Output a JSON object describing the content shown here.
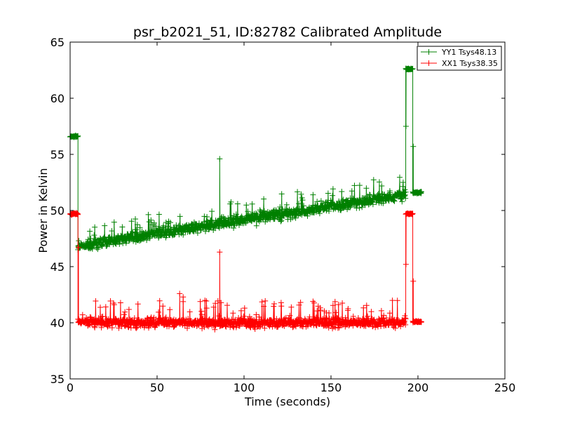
{
  "chart_data": {
    "type": "line",
    "title": "psr_b2021_51, ID:82782 Calibrated Amplitude",
    "xlabel": "Time (seconds)",
    "ylabel": "Power in Kelvin",
    "xlim": [
      0,
      250
    ],
    "ylim": [
      35,
      65
    ],
    "x_ticks": [
      0,
      50,
      100,
      150,
      200,
      250
    ],
    "y_ticks": [
      35,
      40,
      45,
      50,
      55,
      60,
      65
    ],
    "grid": false,
    "legend_position": "top-right",
    "marker": "+",
    "series": [
      {
        "name": "YY1 Tsys48.13",
        "color": "#008000",
        "segments": [
          {
            "x_start": 0,
            "x_end": 4.5,
            "baseline_start": 56.6,
            "baseline_end": 56.6,
            "noise": 0.08,
            "spike_prob": 0
          },
          {
            "x_start": 4.5,
            "x_end": 10,
            "baseline_start": 46.8,
            "baseline_end": 46.9,
            "noise": 0.2,
            "spike_prob": 0.05,
            "spike_max": 0.8
          },
          {
            "x_start": 10,
            "x_end": 193,
            "baseline_start": 47.0,
            "baseline_end": 51.4,
            "noise": 0.45,
            "spike_prob": 0.07,
            "spike_max": 1.8
          },
          {
            "x_start": 193,
            "x_end": 197,
            "baseline_start": 62.6,
            "baseline_end": 62.6,
            "noise": 0.06,
            "spike_prob": 0
          },
          {
            "x_start": 197,
            "x_end": 202,
            "baseline_start": 51.6,
            "baseline_end": 51.6,
            "noise": 0.08,
            "spike_prob": 0
          }
        ],
        "outliers": [
          {
            "x": 86,
            "y": 54.6
          },
          {
            "x": 4.8,
            "y": 46.8
          },
          {
            "x": 193.1,
            "y": 57.5
          },
          {
            "x": 197.3,
            "y": 55.7
          }
        ]
      },
      {
        "name": "XX1 Tsys38.35",
        "color": "#ff0000",
        "segments": [
          {
            "x_start": 0,
            "x_end": 4.5,
            "baseline_start": 49.7,
            "baseline_end": 49.7,
            "noise": 0.08,
            "spike_prob": 0
          },
          {
            "x_start": 4.5,
            "x_end": 10,
            "baseline_start": 40.1,
            "baseline_end": 40.1,
            "noise": 0.15,
            "spike_prob": 0.04,
            "spike_max": 0.8
          },
          {
            "x_start": 10,
            "x_end": 193,
            "baseline_start": 40.0,
            "baseline_end": 40.0,
            "noise": 0.4,
            "spike_prob": 0.07,
            "spike_max": 2.0
          },
          {
            "x_start": 193,
            "x_end": 197,
            "baseline_start": 49.7,
            "baseline_end": 49.7,
            "noise": 0.06,
            "spike_prob": 0
          },
          {
            "x_start": 197,
            "x_end": 202,
            "baseline_start": 40.1,
            "baseline_end": 40.1,
            "noise": 0.08,
            "spike_prob": 0
          }
        ],
        "outliers": [
          {
            "x": 86,
            "y": 46.3
          },
          {
            "x": 4.8,
            "y": 46.7
          },
          {
            "x": 193.1,
            "y": 45.2
          },
          {
            "x": 197.3,
            "y": 43.7
          },
          {
            "x": 63,
            "y": 42.6
          },
          {
            "x": 65,
            "y": 42.3
          }
        ]
      }
    ]
  }
}
